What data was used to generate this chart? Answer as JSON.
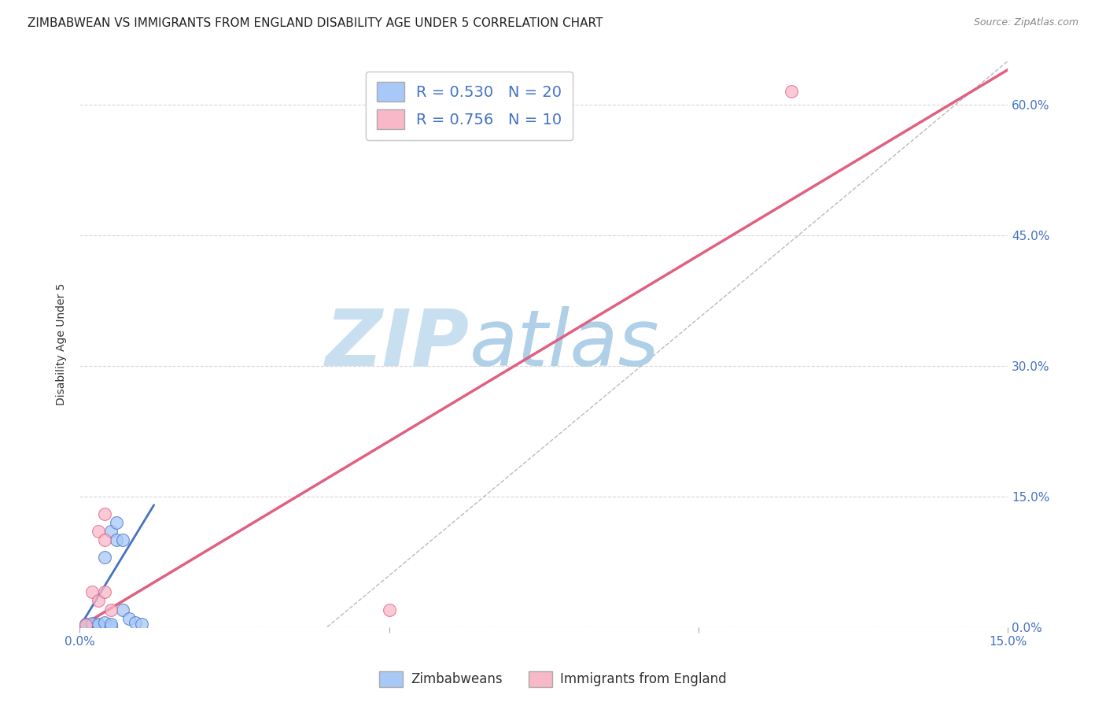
{
  "title": "ZIMBABWEAN VS IMMIGRANTS FROM ENGLAND DISABILITY AGE UNDER 5 CORRELATION CHART",
  "source": "Source: ZipAtlas.com",
  "ylabel_label": "Disability Age Under 5",
  "xlim": [
    0.0,
    0.15
  ],
  "ylim": [
    0.0,
    0.65
  ],
  "xticks": [
    0.0,
    0.05,
    0.1,
    0.15
  ],
  "yticks": [
    0.0,
    0.15,
    0.3,
    0.45,
    0.6
  ],
  "xtick_labels": [
    "0.0%",
    "",
    "",
    "15.0%"
  ],
  "ytick_labels_right": [
    "0.0%",
    "15.0%",
    "30.0%",
    "45.0%",
    "60.0%"
  ],
  "blue_scatter_x": [
    0.001,
    0.001,
    0.002,
    0.002,
    0.002,
    0.003,
    0.003,
    0.003,
    0.004,
    0.004,
    0.005,
    0.005,
    0.005,
    0.006,
    0.006,
    0.007,
    0.007,
    0.008,
    0.009,
    0.01
  ],
  "blue_scatter_y": [
    0.001,
    0.003,
    0.001,
    0.002,
    0.004,
    0.001,
    0.002,
    0.003,
    0.005,
    0.08,
    0.001,
    0.003,
    0.11,
    0.1,
    0.12,
    0.1,
    0.02,
    0.01,
    0.005,
    0.003
  ],
  "pink_scatter_x": [
    0.001,
    0.002,
    0.003,
    0.003,
    0.004,
    0.004,
    0.004,
    0.005,
    0.05,
    0.115
  ],
  "pink_scatter_y": [
    0.002,
    0.04,
    0.03,
    0.11,
    0.1,
    0.13,
    0.04,
    0.02,
    0.02,
    0.615
  ],
  "blue_line_x": [
    0.0,
    0.012
  ],
  "blue_line_y": [
    0.0,
    0.14
  ],
  "pink_line_x": [
    0.0,
    0.15
  ],
  "pink_line_y": [
    0.0,
    0.64
  ],
  "diag_line_x": [
    0.04,
    0.15
  ],
  "diag_line_y": [
    0.0,
    0.65
  ],
  "blue_color": "#a8c8f8",
  "blue_dark": "#4472c4",
  "pink_color": "#f8b8c8",
  "pink_dark": "#e06080",
  "R_blue": "0.530",
  "N_blue": "20",
  "R_pink": "0.756",
  "N_pink": "10",
  "legend_bottom": [
    "Zimbabweans",
    "Immigrants from England"
  ],
  "background_color": "#ffffff",
  "grid_color": "#d8d8d8",
  "title_fontsize": 11,
  "label_fontsize": 10,
  "tick_fontsize": 11,
  "watermark_zip": "ZIP",
  "watermark_atlas": "atlas",
  "watermark_color_zip": "#c8dff0",
  "watermark_color_atlas": "#b0d0e8"
}
